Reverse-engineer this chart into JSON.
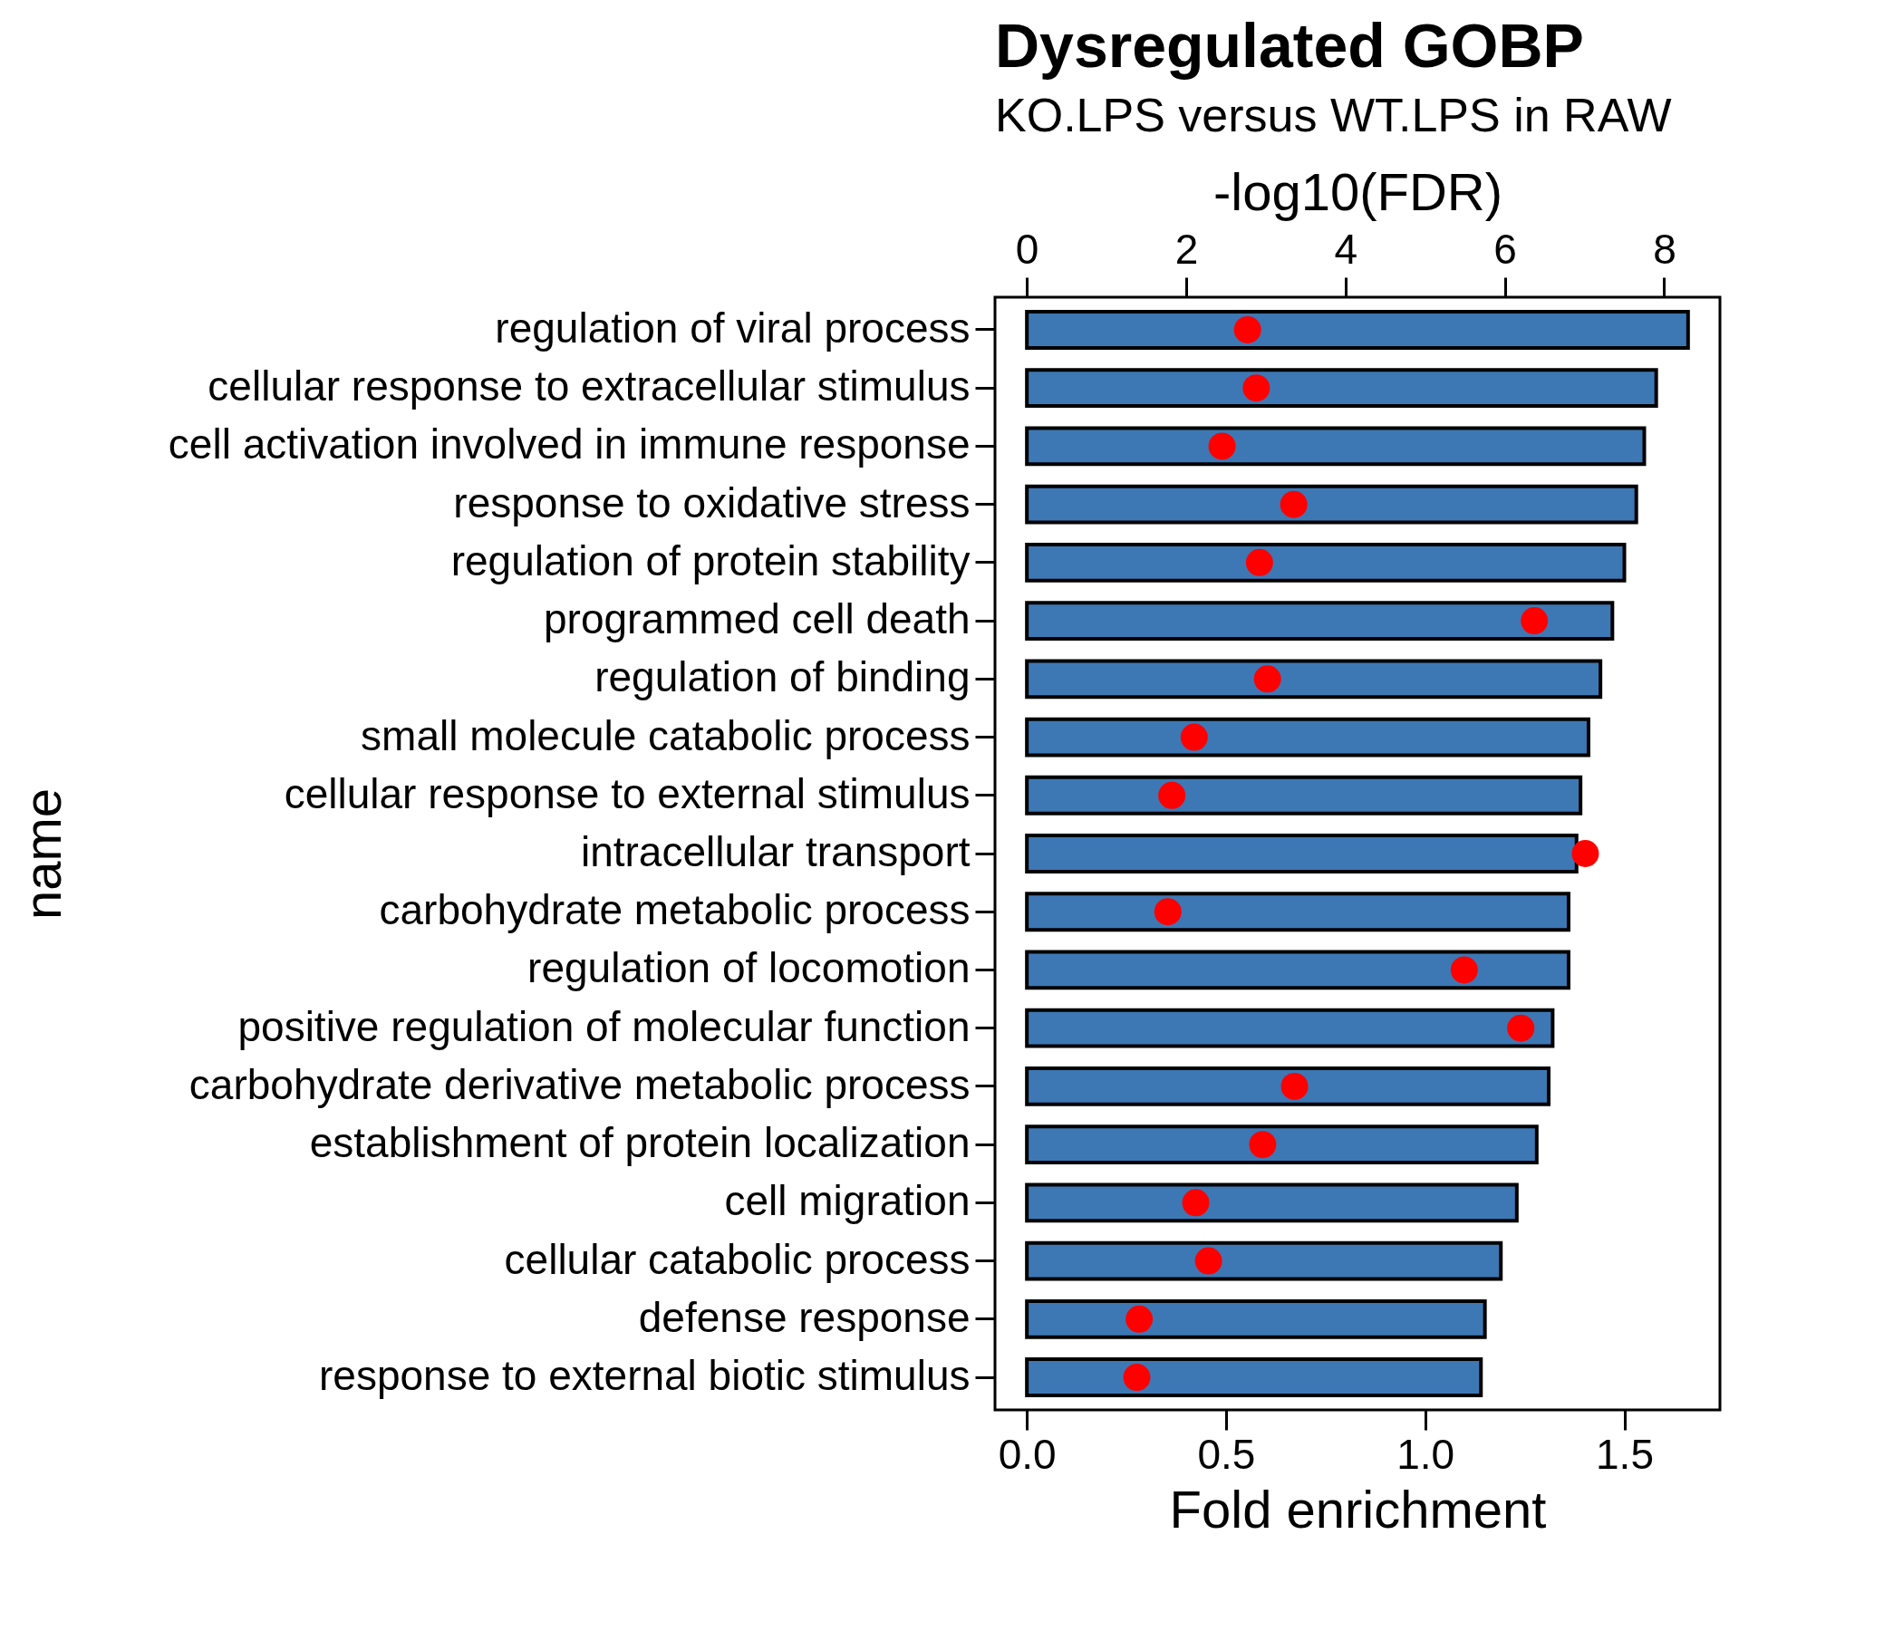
{
  "chart_data": {
    "type": "bar",
    "orientation": "horizontal",
    "title": "Dysregulated GOBP",
    "subtitle": "KO.LPS versus WT.LPS in RAW",
    "xlabel": "Fold enrichment",
    "x2label": "-log10(FDR)",
    "ylabel": "name",
    "categories": [
      "regulation of viral process",
      "cellular response to extracellular stimulus",
      "cell activation involved in immune response",
      "response to oxidative stress",
      "regulation of protein stability",
      "programmed cell death",
      "regulation of binding",
      "small molecule catabolic process",
      "cellular response to external stimulus",
      "intracellular transport",
      "carbohydrate metabolic process",
      "regulation of locomotion",
      "positive regulation of molecular function",
      "carbohydrate derivative metabolic process",
      "establishment of protein localization",
      "cell migration",
      "cellular catabolic process",
      "defense response",
      "response to external biotic stimulus"
    ],
    "series": [
      {
        "type": "bar",
        "color": "#3d78b5",
        "values": [
          1.66,
          1.58,
          1.55,
          1.53,
          1.5,
          1.47,
          1.44,
          1.41,
          1.39,
          1.38,
          1.36,
          1.36,
          1.32,
          1.31,
          1.28,
          1.23,
          1.19,
          1.15,
          1.14
        ]
      },
      {
        "type": "scatter",
        "axis": "x2",
        "color": "#ff0000",
        "values": [
          2.77,
          2.88,
          2.45,
          3.35,
          2.92,
          6.37,
          3.02,
          2.1,
          1.82,
          7.01,
          1.77,
          5.49,
          6.2,
          3.36,
          2.96,
          2.12,
          2.28,
          1.41,
          1.38
        ]
      }
    ],
    "xlim": [
      -0.08,
      1.74
    ],
    "xticks": [
      {
        "value": 0,
        "label": "0.0"
      },
      0.5,
      {
        "value": 1,
        "label": "1.0"
      },
      1.5
    ],
    "x2lim": [
      -0.4,
      8.7
    ],
    "x2ticks": [
      0,
      2,
      4,
      6,
      8
    ],
    "grid": false,
    "marker": "circle"
  }
}
